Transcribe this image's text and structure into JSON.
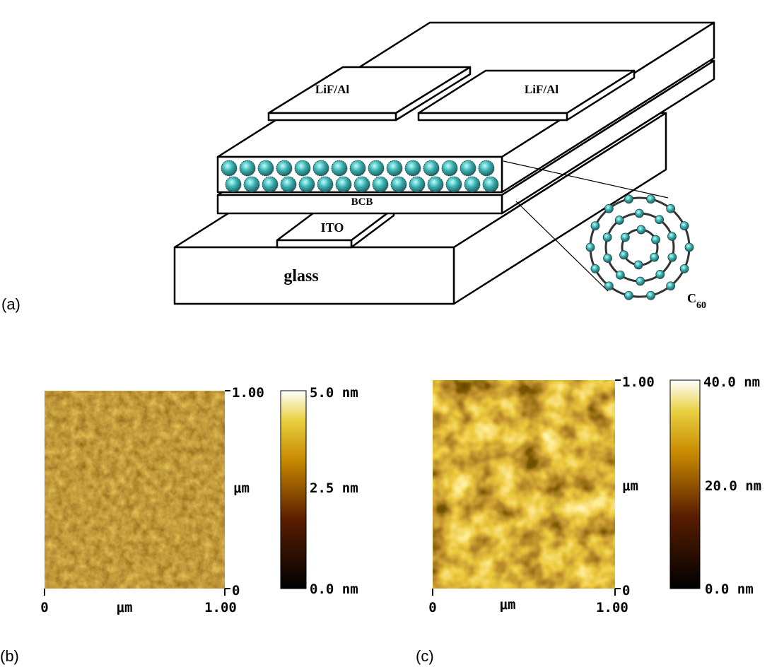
{
  "panel_a": {
    "label": "(a)",
    "electrode_left": "LiF/Al",
    "electrode_right": "LiF/Al",
    "insulator": "BCB",
    "anode": "ITO",
    "substrate": "glass",
    "molecule": {
      "symbol": "C",
      "subscript": "60"
    }
  },
  "panel_b": {
    "label": "(b)",
    "x_start": "0",
    "x_end": "1.00",
    "x_unit": "μm",
    "y_start": "0",
    "y_end": "1.00",
    "y_unit": "μm",
    "colorbar_top": "5.0 nm",
    "colorbar_mid": "2.5 nm",
    "colorbar_bottom": "0.0 nm"
  },
  "panel_c": {
    "label": "(c)",
    "x_start": "0",
    "x_end": "1.00",
    "x_unit": "μm",
    "y_start": "0",
    "y_end": "1.00",
    "y_unit": "μm",
    "colorbar_top": "40.0 nm",
    "colorbar_mid": "20.0 nm",
    "colorbar_bottom": "0.0 nm"
  }
}
